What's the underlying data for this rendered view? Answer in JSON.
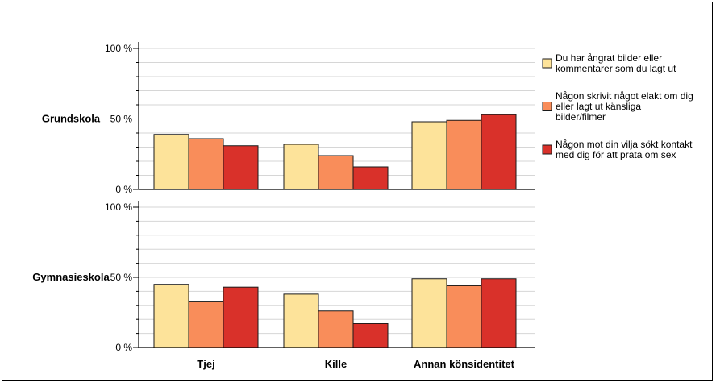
{
  "chart_data": {
    "type": "bar",
    "categories": [
      "Tjej",
      "Kille",
      "Annan könsidentitet"
    ],
    "series": [
      {
        "name": "Du har ångrat bilder eller kommentarer som du lagt ut",
        "color": "#fde39a"
      },
      {
        "name": "Någon skrivit något elakt om dig eller lagt ut känsliga bilder/filmer",
        "color": "#f98d5a"
      },
      {
        "name": "Någon mot din vilja sökt kontakt med dig för att prata om sex",
        "color": "#d9312a"
      }
    ],
    "legend": {
      "placement": "right",
      "entries": [
        {
          "lines": [
            "Du har ångrat bilder eller",
            "kommentarer som du lagt ut"
          ]
        },
        {
          "lines": [
            "Någon skrivit något elakt om dig",
            "eller lagt ut känsliga",
            "bilder/filmer"
          ]
        },
        {
          "lines": [
            "Någon mot din vilja sökt kontakt",
            "med dig för att prata om sex"
          ]
        }
      ]
    },
    "yticks": [
      "0 %",
      "50 %",
      "100 %"
    ],
    "ylim": [
      0,
      100
    ],
    "grid": true,
    "panels": [
      {
        "label": "Grundskola",
        "values": [
          [
            39,
            32,
            48
          ],
          [
            36,
            24,
            49
          ],
          [
            31,
            16,
            53
          ]
        ]
      },
      {
        "label": "Gymnasieskola",
        "values": [
          [
            45,
            38,
            49
          ],
          [
            33,
            26,
            44
          ],
          [
            43,
            17,
            49
          ]
        ]
      }
    ]
  }
}
